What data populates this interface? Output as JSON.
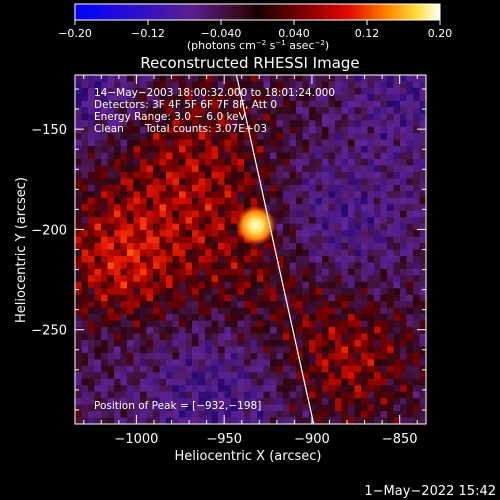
{
  "chart_data": {
    "type": "heatmap",
    "title": "Reconstructed RHESSI Image",
    "xlabel": "Heliocentric X (arcsec)",
    "ylabel": "Heliocentric Y (arcsec)",
    "xlim": [
      -1035,
      -835
    ],
    "ylim": [
      -297,
      -123
    ],
    "x_ticks": [
      -1000,
      -950,
      -900,
      -850
    ],
    "x_tick_labels": [
      "−1000",
      "−950",
      "−900",
      "−850"
    ],
    "y_ticks": [
      -150,
      -200,
      -250
    ],
    "y_tick_labels": [
      "−150",
      "−200",
      "−250"
    ],
    "colorbar": {
      "range": [
        -0.2,
        0.2
      ],
      "ticks": [
        -0.2,
        -0.12,
        -0.04,
        0.04,
        0.12,
        0.2
      ],
      "tick_labels": [
        "−0.20",
        "−0.12",
        "−0.040",
        "0.040",
        "0.12",
        "0.20"
      ],
      "units_prefix": "(photons cm",
      "units_exp1": "−2",
      "units_mid": " s",
      "units_exp2": "−1",
      "units_mid2": " asec",
      "units_exp3": "−2",
      "units_suffix": ")"
    },
    "annotations": {
      "time_range": "14−May−2003 18:00:32.000 to 18:01:24.000",
      "detectors": "Detectors: 3F 4F 5F 6F 7F 8F, Att 0",
      "energy": "Energy Range: 3.0 − 6.0 keV",
      "clean": "Clean",
      "total_counts": "Total counts: 3.07E+03",
      "peak_position": "Position of Peak = [−932,−198]"
    },
    "peak": {
      "x": -932,
      "y": -198
    },
    "limb_line": [
      {
        "x": -943,
        "y": -123
      },
      {
        "x": -899,
        "y": -297
      }
    ],
    "footer_date": "1−May−2022 15:42"
  },
  "colors": {
    "background": "#000000",
    "axes": "#ffffff",
    "limb": "#ffffff"
  }
}
